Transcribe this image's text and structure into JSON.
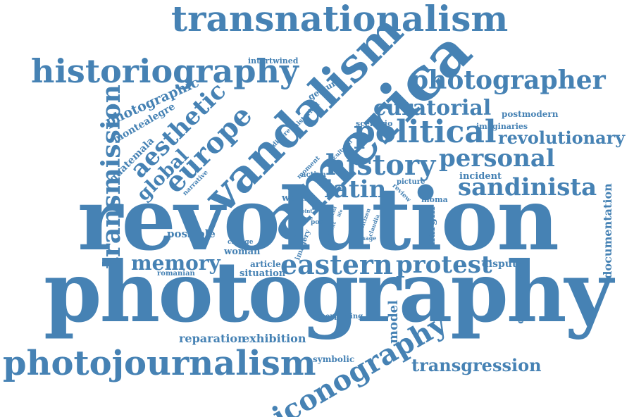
{
  "color": "#4682b4",
  "words": [
    {
      "key": "revolution",
      "text": "revolution",
      "orientation": "horizontal"
    },
    {
      "key": "photography",
      "text": "photography",
      "orientation": "horizontal"
    },
    {
      "key": "transnationalism",
      "text": "transnationalism",
      "orientation": "horizontal"
    },
    {
      "key": "america",
      "text": "america",
      "orientation": "diagonal-up"
    },
    {
      "key": "vandalism",
      "text": "vandalism",
      "orientation": "diagonal-up"
    },
    {
      "key": "historiography",
      "text": "historiography",
      "orientation": "horizontal"
    },
    {
      "key": "photojournalism",
      "text": "photojournalism",
      "orientation": "horizontal"
    },
    {
      "key": "iconography",
      "text": "iconography",
      "orientation": "diagonal-up"
    },
    {
      "key": "photographer",
      "text": "photographer",
      "orientation": "horizontal"
    },
    {
      "key": "political",
      "text": "political",
      "orientation": "horizontal"
    },
    {
      "key": "curatorial",
      "text": "curatorial",
      "orientation": "horizontal"
    },
    {
      "key": "history",
      "text": "history",
      "orientation": "horizontal"
    },
    {
      "key": "personal",
      "text": "personal",
      "orientation": "horizontal"
    },
    {
      "key": "sandinista",
      "text": "sandinista",
      "orientation": "horizontal"
    },
    {
      "key": "revolutionary",
      "text": "revolutionary",
      "orientation": "horizontal"
    },
    {
      "key": "latin",
      "text": "latin",
      "orientation": "horizontal"
    },
    {
      "key": "europe",
      "text": "europe",
      "orientation": "diagonal-up"
    },
    {
      "key": "aesthetic",
      "text": "aesthetic",
      "orientation": "diagonal-up"
    },
    {
      "key": "global",
      "text": "global",
      "orientation": "diagonal-up"
    },
    {
      "key": "transmission",
      "text": "transmission",
      "orientation": "vertical"
    },
    {
      "key": "eastern",
      "text": "eastern",
      "orientation": "horizontal"
    },
    {
      "key": "protest",
      "text": "protest",
      "orientation": "horizontal"
    },
    {
      "key": "memory",
      "text": "memory",
      "orientation": "horizontal"
    },
    {
      "key": "transgression",
      "text": "transgression",
      "orientation": "horizontal"
    },
    {
      "key": "reparation",
      "text": "reparation",
      "orientation": "horizontal"
    },
    {
      "key": "exhibition",
      "text": "exhibition",
      "orientation": "horizontal"
    },
    {
      "key": "photographic",
      "text": "photographic",
      "orientation": "diagonal-up"
    },
    {
      "key": "montealegre",
      "text": "montealegre",
      "orientation": "diagonal-up"
    },
    {
      "key": "guatemala",
      "text": "guatemala",
      "orientation": "diagonal-up"
    },
    {
      "key": "intertwined",
      "text": "intertwined",
      "orientation": "horizontal"
    },
    {
      "key": "gesture",
      "text": "gesture",
      "orientation": "diagonal-up"
    },
    {
      "key": "different",
      "text": "different",
      "orientation": "diagonal-up"
    },
    {
      "key": "historical",
      "text": "historical",
      "orientation": "diagonal-up"
    },
    {
      "key": "scenario",
      "text": "scenario",
      "orientation": "horizontal"
    },
    {
      "key": "cultural",
      "text": "cultural",
      "orientation": "diagonal-up"
    },
    {
      "key": "postmodern",
      "text": "postmodern",
      "orientation": "horizontal"
    },
    {
      "key": "imaginaries",
      "text": "imaginaries",
      "orientation": "horizontal"
    },
    {
      "key": "incident",
      "text": "incident",
      "orientation": "horizontal"
    },
    {
      "key": "moment",
      "text": "moment",
      "orientation": "diagonal-up"
    },
    {
      "key": "narrative",
      "text": "narrative",
      "orientation": "diagonal-up"
    },
    {
      "key": "action",
      "text": "action",
      "orientation": "horizontal"
    },
    {
      "key": "picture",
      "text": "picture",
      "orientation": "horizontal"
    },
    {
      "key": "review",
      "text": "review",
      "orientation": "diagonal-down"
    },
    {
      "key": "visual",
      "text": "visual",
      "orientation": "horizontal"
    },
    {
      "key": "work",
      "text": "work",
      "orientation": "horizontal"
    },
    {
      "key": "point",
      "text": "point",
      "orientation": "horizontal"
    },
    {
      "key": "more",
      "text": "more",
      "orientation": "horizontal"
    },
    {
      "key": "social",
      "text": "social",
      "orientation": "diagonal-up"
    },
    {
      "key": "life",
      "text": "life",
      "orientation": "diagonal-up"
    },
    {
      "key": "post",
      "text": "post",
      "orientation": "horizontal"
    },
    {
      "key": "citizen",
      "text": "citizen",
      "orientation": "diagonal-up"
    },
    {
      "key": "claudia",
      "text": "claudia",
      "orientation": "diagonal-up"
    },
    {
      "key": "context",
      "text": "context",
      "orientation": "diagonal-up"
    },
    {
      "key": "image",
      "text": "image",
      "orientation": "horizontal"
    },
    {
      "key": "moma",
      "text": "moma",
      "orientation": "horizontal"
    },
    {
      "key": "margin",
      "text": "margin",
      "orientation": "vertical"
    },
    {
      "key": "documentation",
      "text": "documentation",
      "orientation": "vertical"
    },
    {
      "key": "possible",
      "text": "possible",
      "orientation": "horizontal"
    },
    {
      "key": "change",
      "text": "change",
      "orientation": "horizontal"
    },
    {
      "key": "woman",
      "text": "woman",
      "orientation": "horizontal"
    },
    {
      "key": "imagery",
      "text": "imagery",
      "orientation": "diagonal-up"
    },
    {
      "key": "article",
      "text": "article",
      "orientation": "horizontal"
    },
    {
      "key": "situation",
      "text": "situation",
      "orientation": "horizontal"
    },
    {
      "key": "romanian",
      "text": "romanian",
      "orientation": "horizontal"
    },
    {
      "key": "dispute",
      "text": "dispute",
      "orientation": "horizontal"
    },
    {
      "key": "concerned",
      "text": "concerned",
      "orientation": "vertical"
    },
    {
      "key": "model",
      "text": "model",
      "orientation": "vertical"
    },
    {
      "key": "exploring",
      "text": "exploring",
      "orientation": "horizontal"
    },
    {
      "key": "symbolic",
      "text": "symbolic",
      "orientation": "horizontal"
    }
  ]
}
